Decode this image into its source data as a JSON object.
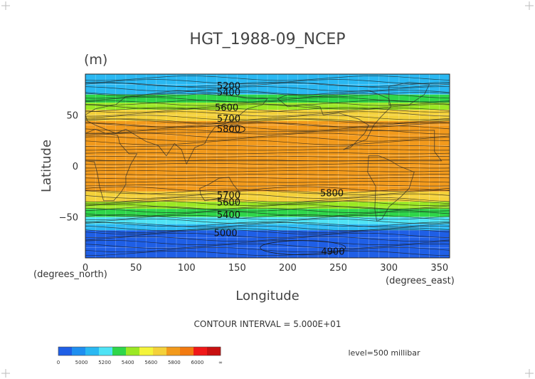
{
  "chart_data": {
    "type": "heatmap",
    "title": "HGT_1988-09_NCEP",
    "units_label": "(m)",
    "xlabel": "Longitude",
    "ylabel": "Latitude",
    "x_unit_label": "(degrees_east)",
    "y_unit_label": "(degrees_north)",
    "xlim": [
      0,
      360
    ],
    "ylim": [
      -90,
      90
    ],
    "x_ticks": [
      "0",
      "50",
      "100",
      "150",
      "200",
      "250",
      "300",
      "350"
    ],
    "x_tick_values": [
      0,
      50,
      100,
      150,
      200,
      250,
      300,
      350
    ],
    "y_ticks": [
      "50",
      "0",
      "−50"
    ],
    "y_tick_values": [
      50,
      0,
      -50
    ],
    "grid": true,
    "contour_interval_text": "CONTOUR INTERVAL = 5.000E+01",
    "level_text": "level=500 millibar",
    "contour_labels": [
      {
        "text": "5200",
        "lon": 130,
        "lat": 78
      },
      {
        "text": "5400",
        "lon": 130,
        "lat": 72
      },
      {
        "text": "5600",
        "lon": 128,
        "lat": 57
      },
      {
        "text": "5700",
        "lon": 130,
        "lat": 46
      },
      {
        "text": "5800",
        "lon": 130,
        "lat": 36
      },
      {
        "text": "5800",
        "lon": 232,
        "lat": -27
      },
      {
        "text": "5700",
        "lon": 130,
        "lat": -29
      },
      {
        "text": "5600",
        "lon": 130,
        "lat": -36
      },
      {
        "text": "5400",
        "lon": 130,
        "lat": -48
      },
      {
        "text": "5000",
        "lon": 127,
        "lat": -66
      },
      {
        "text": "4900",
        "lon": 233,
        "lat": -84
      }
    ],
    "bands": [
      {
        "lat_top": 90,
        "lat_bottom": 80,
        "value": 5150
      },
      {
        "lat_top": 80,
        "lat_bottom": 70,
        "value": 5300
      },
      {
        "lat_top": 70,
        "lat_bottom": 62,
        "value": 5450
      },
      {
        "lat_top": 62,
        "lat_bottom": 55,
        "value": 5550
      },
      {
        "lat_top": 55,
        "lat_bottom": 44,
        "value": 5700
      },
      {
        "lat_top": 44,
        "lat_bottom": 40,
        "value": 5800
      },
      {
        "lat_top": 40,
        "lat_bottom": -25,
        "value": 5850
      },
      {
        "lat_top": -25,
        "lat_bottom": -35,
        "value": 5700
      },
      {
        "lat_top": -35,
        "lat_bottom": -42,
        "value": 5550
      },
      {
        "lat_top": -42,
        "lat_bottom": -50,
        "value": 5400
      },
      {
        "lat_top": -50,
        "lat_bottom": -57,
        "value": 5250
      },
      {
        "lat_top": -57,
        "lat_bottom": -63,
        "value": 5100
      },
      {
        "lat_top": -63,
        "lat_bottom": -90,
        "value": 4950
      }
    ],
    "colorbar": {
      "labels": [
        "0",
        "5000",
        "5200",
        "5400",
        "5600",
        "5800",
        "6000",
        "∞"
      ],
      "colors": [
        "#1f5fe6",
        "#1f8ff0",
        "#2ab8f2",
        "#4fe3f5",
        "#2fd64a",
        "#9be824",
        "#f4f43a",
        "#f4d13a",
        "#f29a1c",
        "#f27a10",
        "#f01818",
        "#c81010"
      ]
    }
  }
}
